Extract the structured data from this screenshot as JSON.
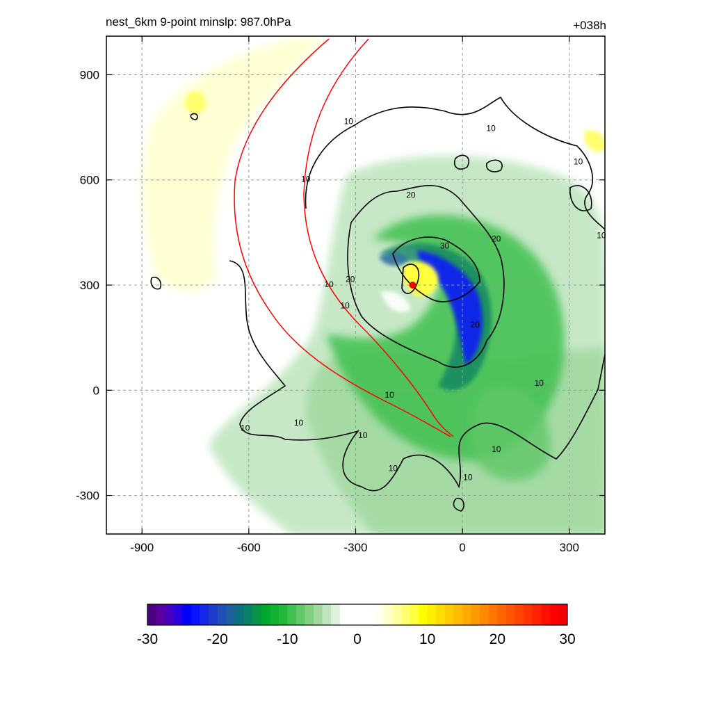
{
  "header": {
    "title": "nest_6km  9-point minslp: 987.0hPa",
    "time": "+038h"
  },
  "map": {
    "xlim": [
      -1000,
      400
    ],
    "ylim": [
      -410,
      1010
    ],
    "x_ticks": [
      -900,
      -600,
      -300,
      0,
      300
    ],
    "y_ticks": [
      -300,
      0,
      300,
      600,
      900
    ],
    "x_tick_labels": [
      "-900",
      "-600",
      "-300",
      "0",
      "300"
    ],
    "y_tick_labels": [
      "-300",
      "0",
      "300",
      "600",
      "900"
    ],
    "grid": true,
    "center_marker": [
      -140,
      300
    ],
    "contour_labels": [
      {
        "text": "10",
        "x": -375,
        "y": 300
      },
      {
        "text": "10",
        "x": -440,
        "y": 600
      },
      {
        "text": "10",
        "x": -330,
        "y": 240
      },
      {
        "text": "10",
        "x": -320,
        "y": 765
      },
      {
        "text": "10",
        "x": 80,
        "y": 745
      },
      {
        "text": "10",
        "x": 325,
        "y": 650
      },
      {
        "text": "10",
        "x": 390,
        "y": 440
      },
      {
        "text": "10",
        "x": 215,
        "y": 18
      },
      {
        "text": "10",
        "x": -205,
        "y": -15
      },
      {
        "text": "10",
        "x": -460,
        "y": -95
      },
      {
        "text": "10",
        "x": -610,
        "y": -110
      },
      {
        "text": "10",
        "x": -280,
        "y": -130
      },
      {
        "text": "10",
        "x": -195,
        "y": -225
      },
      {
        "text": "10",
        "x": 15,
        "y": -250
      },
      {
        "text": "10",
        "x": 95,
        "y": -170
      },
      {
        "text": "20",
        "x": -145,
        "y": 555
      },
      {
        "text": "20",
        "x": 95,
        "y": 430
      },
      {
        "text": "20",
        "x": -315,
        "y": 315
      },
      {
        "text": "20",
        "x": 35,
        "y": 185
      },
      {
        "text": "30",
        "x": -50,
        "y": 410
      }
    ]
  },
  "colorbar": {
    "min": -30,
    "max": 30,
    "tick_labels": [
      "-30",
      "-20",
      "-10",
      "0",
      "10",
      "20",
      "30"
    ],
    "colors": [
      "#4b0082",
      "#5a00a0",
      "#4500c0",
      "#2a00e0",
      "#0000ff",
      "#0a14ff",
      "#1428e6",
      "#1e3ccc",
      "#1e4fb4",
      "#1e609c",
      "#0f7080",
      "#0a8064",
      "#059448",
      "#00a830",
      "#10b030",
      "#22b83a",
      "#40c050",
      "#60c868",
      "#80d080",
      "#a0d8a0",
      "#c0e6c0",
      "#dcf2dc",
      "#ffffff",
      "#ffffff",
      "#ffffff",
      "#ffffff",
      "#fffff0",
      "#ffffcc",
      "#ffffa0",
      "#ffff70",
      "#ffff40",
      "#ffff00",
      "#ffee00",
      "#ffdd00",
      "#ffcc00",
      "#ffbb00",
      "#ffaa00",
      "#ff9900",
      "#ff8800",
      "#ff7700",
      "#ff6600",
      "#ff5500",
      "#ff4400",
      "#ff3300",
      "#ff2200",
      "#ff1100",
      "#ff0000",
      "#ee0000"
    ]
  }
}
